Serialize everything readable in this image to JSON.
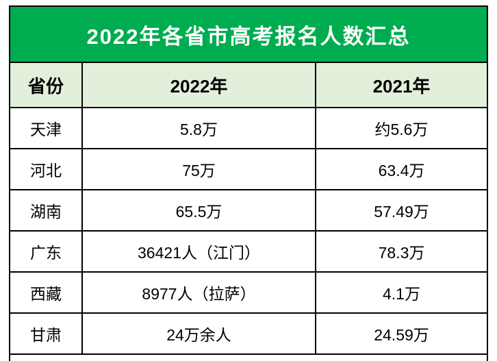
{
  "chart_data": {
    "type": "table",
    "title": "2022年各省市高考报名人数汇总",
    "columns": [
      "省份",
      "2022年",
      "2021年"
    ],
    "rows": [
      [
        "天津",
        "5.8万",
        "约5.6万"
      ],
      [
        "河北",
        "75万",
        "63.4万"
      ],
      [
        "湖南",
        "65.5万",
        "57.49万"
      ],
      [
        "广东",
        "36421人（江门）",
        "78.3万"
      ],
      [
        "西藏",
        "8977人（拉萨）",
        "4.1万"
      ],
      [
        "甘肃",
        "24万余人",
        "24.59万"
      ]
    ],
    "layout": {
      "legend": "none",
      "grid": "black table borders",
      "title_position": "top banner"
    }
  },
  "colors": {
    "title_bg": "#00AC50",
    "title_text": "#FFFFFF",
    "header_bg": "#E2EFDA",
    "row_bg": "#FFFFFF",
    "border": "#000000",
    "body_text": "#000000"
  }
}
